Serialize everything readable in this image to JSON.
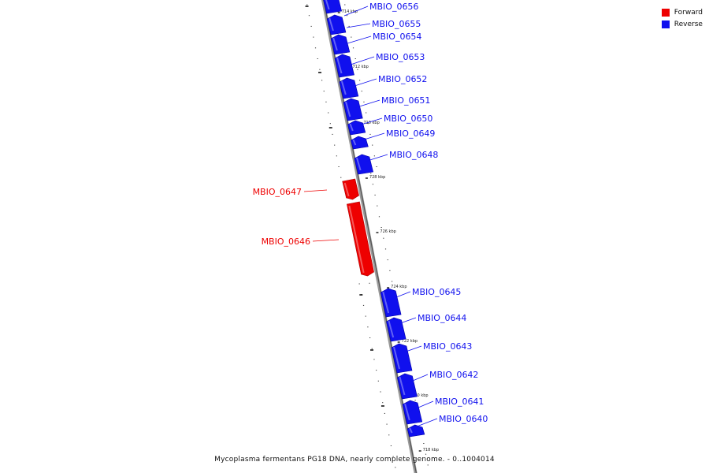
{
  "legend": {
    "forward_label": "Forward",
    "reverse_label": "Reverse",
    "forward_color": "#ee0000",
    "reverse_color": "#1010ee"
  },
  "caption": "Mycoplasma fermentans PG18 DNA, nearly complete genome. - 0..1004014",
  "axis_ticks": [
    "714 kbp",
    "712 kbp",
    "710 kbp",
    "728 kbp",
    "726 kbp",
    "724 kbp",
    "722 kbp",
    "720 kbp",
    "718 kbp"
  ],
  "genes": [
    {
      "name": "MBIO_0656",
      "strand": "reverse"
    },
    {
      "name": "MBIO_0655",
      "strand": "reverse"
    },
    {
      "name": "MBIO_0654",
      "strand": "reverse"
    },
    {
      "name": "MBIO_0653",
      "strand": "reverse"
    },
    {
      "name": "MBIO_0652",
      "strand": "reverse"
    },
    {
      "name": "MBIO_0651",
      "strand": "reverse"
    },
    {
      "name": "MBIO_0650",
      "strand": "reverse"
    },
    {
      "name": "MBIO_0649",
      "strand": "reverse"
    },
    {
      "name": "MBIO_0648",
      "strand": "reverse"
    },
    {
      "name": "MBIO_0647",
      "strand": "forward"
    },
    {
      "name": "MBIO_0646",
      "strand": "forward"
    },
    {
      "name": "MBIO_0645",
      "strand": "reverse"
    },
    {
      "name": "MBIO_0644",
      "strand": "reverse"
    },
    {
      "name": "MBIO_0643",
      "strand": "reverse"
    },
    {
      "name": "MBIO_0642",
      "strand": "reverse"
    },
    {
      "name": "MBIO_0641",
      "strand": "reverse"
    },
    {
      "name": "MBIO_0640",
      "strand": "reverse"
    }
  ]
}
